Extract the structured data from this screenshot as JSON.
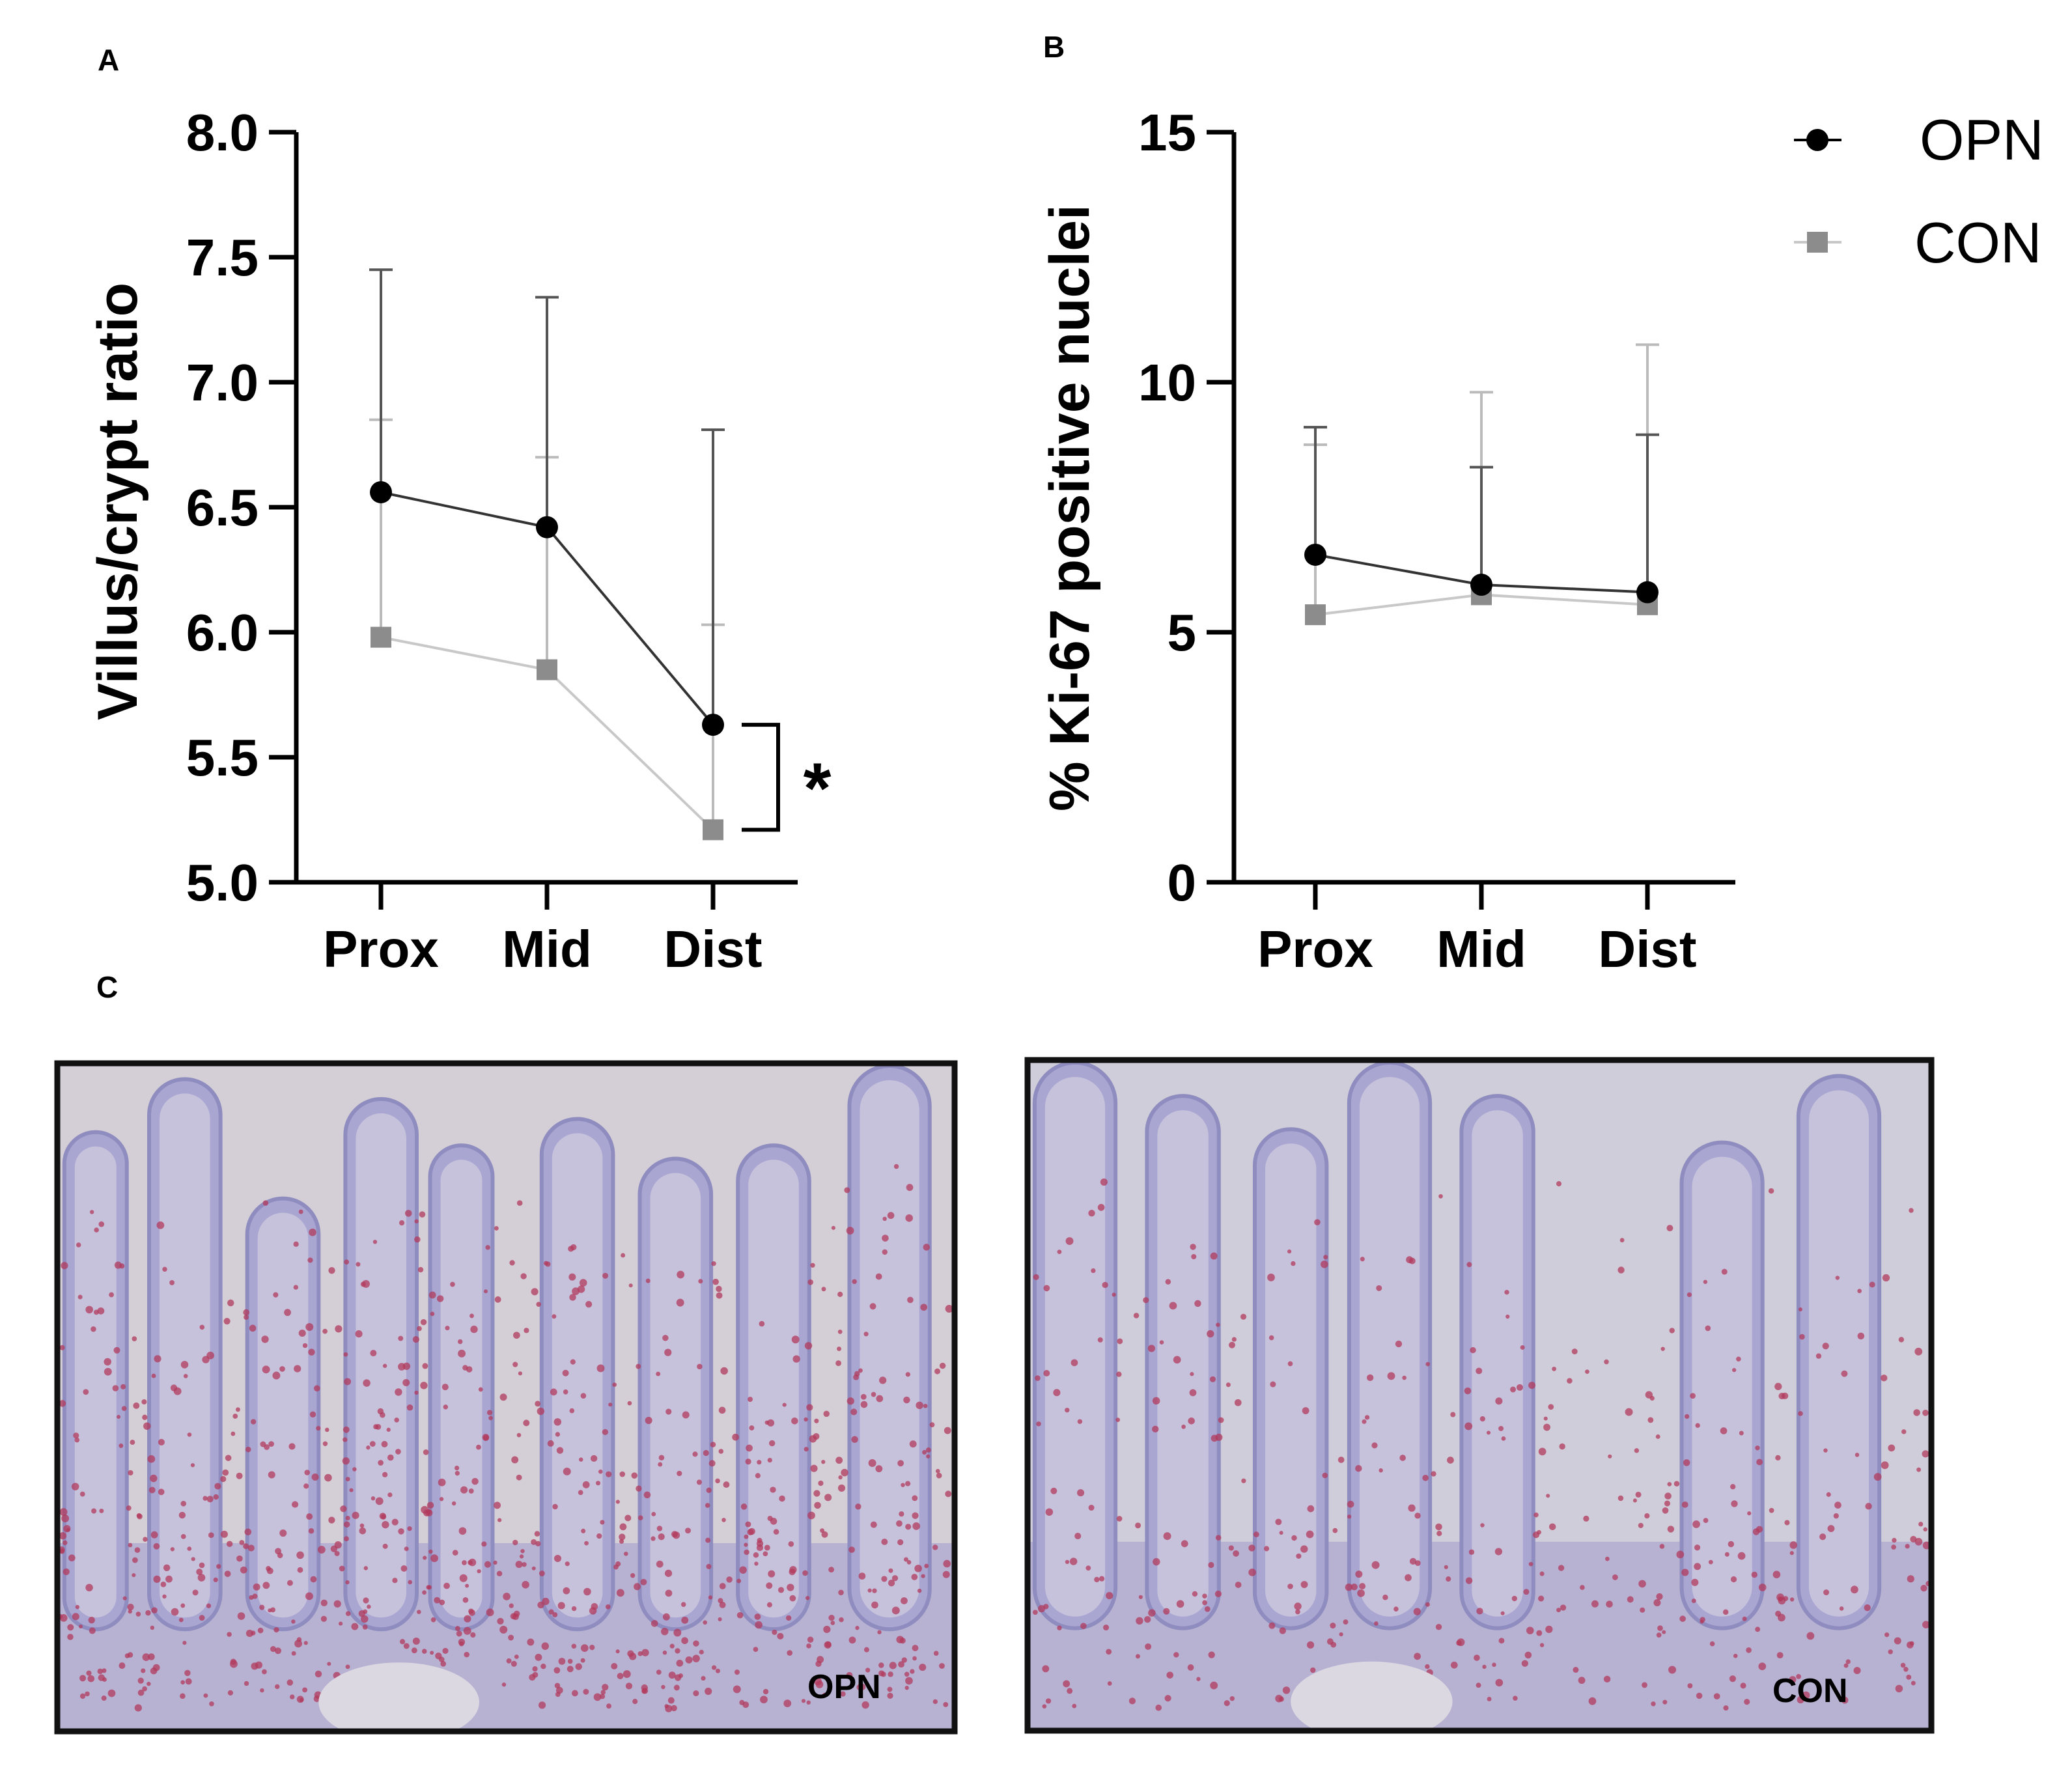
{
  "panels": {
    "a": "A",
    "b": "B",
    "c": "C"
  },
  "colors": {
    "opn": "#000000",
    "con": "#8c8c8c",
    "con_light": "#c8c8c8",
    "tissue_bg": "#d8d4dc",
    "tissue_purple": "#a6a4d0",
    "tissue_red": "#b03050"
  },
  "legend": [
    {
      "name": "OPN",
      "marker": "circle"
    },
    {
      "name": "CON",
      "marker": "square"
    }
  ],
  "chart_data": [
    {
      "type": "line",
      "panel": "A",
      "title": "",
      "ylabel": "Villus/crypt ratio",
      "xlabel": "",
      "categories": [
        "Prox",
        "Mid",
        "Dist"
      ],
      "ylim": [
        5.0,
        8.0
      ],
      "yticks": [
        5.0,
        5.5,
        6.0,
        6.5,
        7.0,
        7.5,
        8.0
      ],
      "ytick_labels": [
        "5.0",
        "5.5",
        "6.0",
        "6.5",
        "7.0",
        "7.5",
        "8.0"
      ],
      "series": [
        {
          "name": "OPN",
          "values": [
            6.56,
            6.42,
            5.63
          ],
          "error_upper": [
            7.45,
            7.34,
            6.81
          ]
        },
        {
          "name": "CON",
          "values": [
            5.98,
            5.85,
            5.21
          ],
          "error_upper": [
            6.85,
            6.7,
            6.03
          ]
        }
      ],
      "annotation": {
        "text": "*",
        "category": "Dist",
        "from": 5.21,
        "to": 5.63
      },
      "grid": false
    },
    {
      "type": "line",
      "panel": "B",
      "title": "",
      "ylabel": "% Ki-67 positive nuclei",
      "xlabel": "",
      "categories": [
        "Prox",
        "Mid",
        "Dist"
      ],
      "ylim": [
        0,
        15
      ],
      "yticks": [
        0,
        5,
        10,
        15
      ],
      "ytick_labels": [
        "0",
        "5",
        "10",
        "15"
      ],
      "series": [
        {
          "name": "OPN",
          "values": [
            6.55,
            5.95,
            5.8
          ],
          "error_upper": [
            9.1,
            8.3,
            8.95
          ]
        },
        {
          "name": "CON",
          "values": [
            5.35,
            5.75,
            5.55
          ],
          "error_upper": [
            8.75,
            9.8,
            10.75
          ]
        }
      ],
      "legend_position": "top-right",
      "grid": false
    }
  ],
  "images": [
    {
      "tag": "OPN",
      "description_icon": "histology-micrograph-icon"
    },
    {
      "tag": "CON",
      "description_icon": "histology-micrograph-icon"
    }
  ]
}
